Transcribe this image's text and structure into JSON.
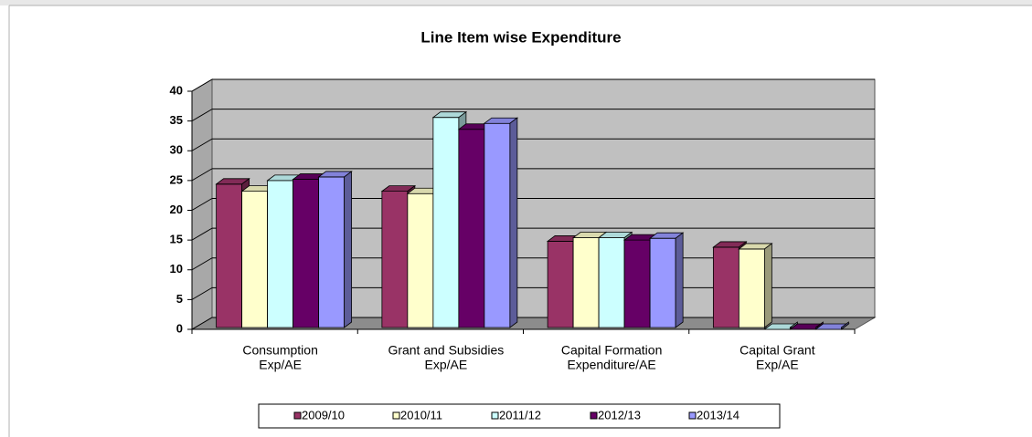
{
  "chart_data": {
    "type": "bar3d",
    "title": "Line Item wise Expenditure",
    "categories": [
      [
        "Consumption",
        "Exp/AE"
      ],
      [
        "Grant and Subsidies",
        "Exp/AE"
      ],
      [
        "Capital Formation",
        "Expenditure/AE"
      ],
      [
        "Capital Grant",
        "Exp/AE"
      ]
    ],
    "series": [
      {
        "name": "2009/10",
        "color": "#993366",
        "values": [
          24.4,
          23.2,
          14.8,
          13.8
        ]
      },
      {
        "name": "2010/11",
        "color": "#ffffcc",
        "values": [
          23.2,
          22.8,
          15.4,
          13.5
        ]
      },
      {
        "name": "2011/12",
        "color": "#ccffff",
        "values": [
          25.0,
          35.6,
          15.4,
          0
        ]
      },
      {
        "name": "2012/13",
        "color": "#660066",
        "values": [
          25.2,
          33.6,
          15.0,
          0
        ]
      },
      {
        "name": "2013/14",
        "color": "#9999ff",
        "values": [
          25.6,
          34.6,
          15.3,
          0
        ]
      }
    ],
    "ylim": [
      0,
      40
    ],
    "yticks": [
      0,
      5,
      10,
      15,
      20,
      25,
      30,
      35,
      40
    ],
    "grid": true,
    "legend": "bottom"
  }
}
